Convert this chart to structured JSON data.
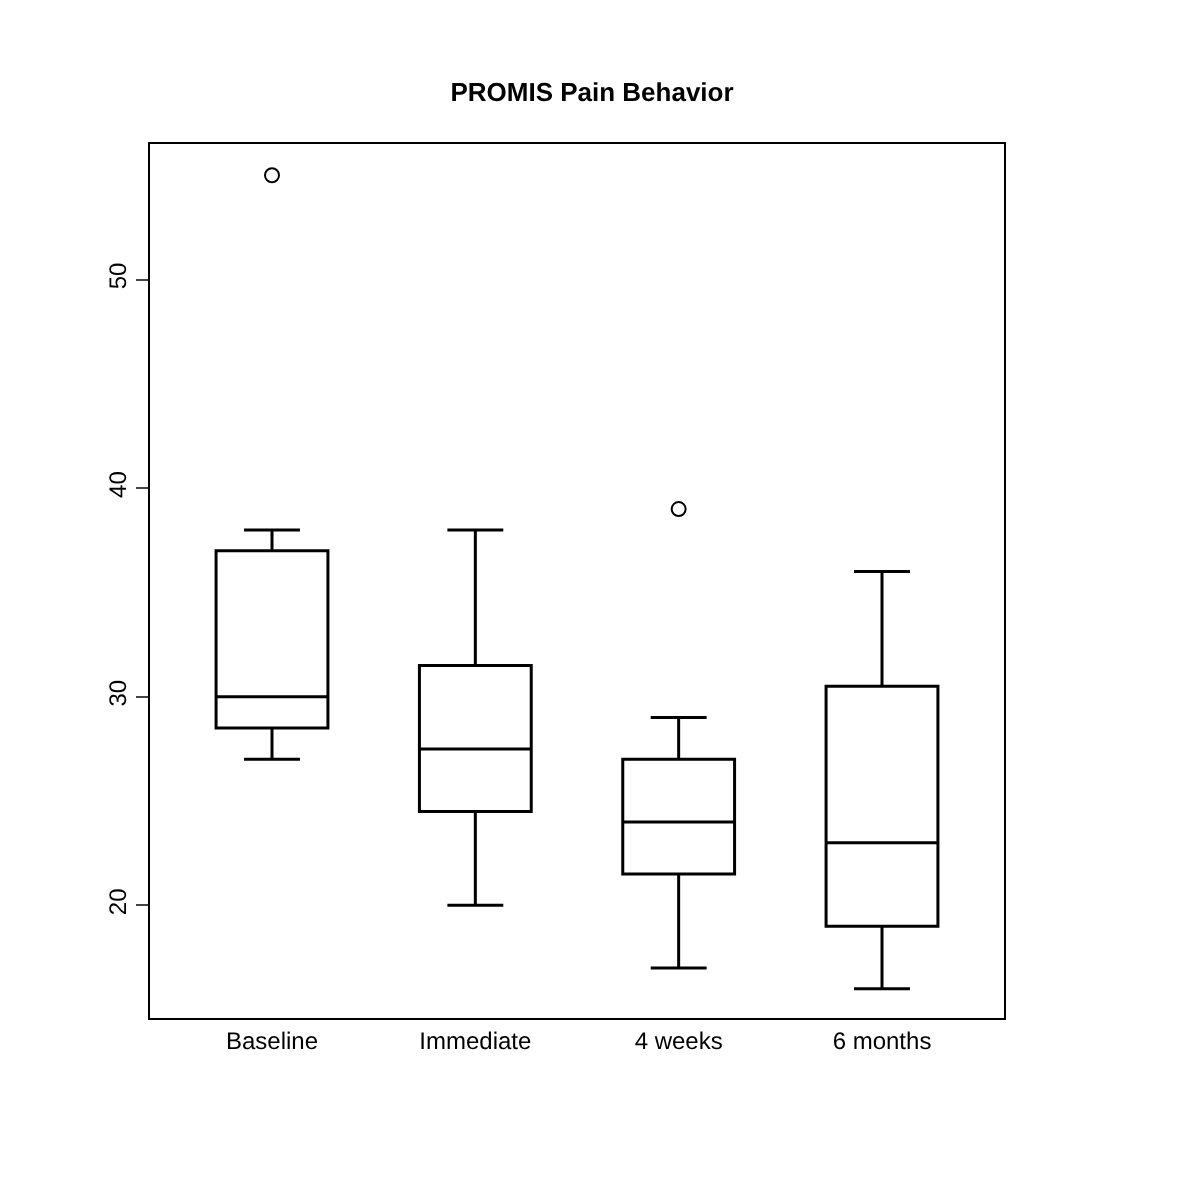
{
  "chart_data": {
    "type": "box",
    "title": "PROMIS Pain Behavior",
    "categories": [
      "Baseline",
      "Immediate",
      "4 weeks",
      "6 months"
    ],
    "boxes": [
      {
        "low": 27,
        "q1": 28.5,
        "median": 30,
        "q3": 37,
        "high": 38,
        "outliers": [
          55
        ]
      },
      {
        "low": 20,
        "q1": 24.5,
        "median": 27.5,
        "q3": 31.5,
        "high": 38
      },
      {
        "low": 17,
        "q1": 21.5,
        "median": 24,
        "q3": 27,
        "high": 29,
        "outliers": [
          39
        ]
      },
      {
        "low": 16,
        "q1": 19,
        "median": 23,
        "q3": 30.5,
        "high": 36
      }
    ],
    "color": "#000000",
    "ylim": [
      14.6,
      56.5
    ],
    "yticks": [
      20,
      30,
      40,
      50
    ],
    "marker": "circle"
  }
}
